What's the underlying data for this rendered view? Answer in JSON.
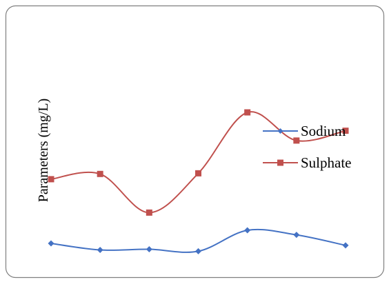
{
  "chart_data": {
    "type": "line",
    "title": "",
    "xlabel": "",
    "ylabel": "Parameters (mg/L)",
    "x": [
      1,
      2,
      3,
      4,
      5,
      6,
      7
    ],
    "ylim": [
      0,
      400
    ],
    "smooth": true,
    "markers": true,
    "grid": false,
    "show_axes": false,
    "legend": {
      "position": "right"
    },
    "series": [
      {
        "name": "Sodium",
        "color": "#4472C4",
        "marker": "diamond",
        "values": [
          40,
          30,
          31,
          28,
          60,
          53,
          37
        ]
      },
      {
        "name": "Sulphate",
        "color": "#C0504D",
        "marker": "square",
        "values": [
          138,
          146,
          87,
          147,
          240,
          197,
          212
        ]
      }
    ]
  }
}
